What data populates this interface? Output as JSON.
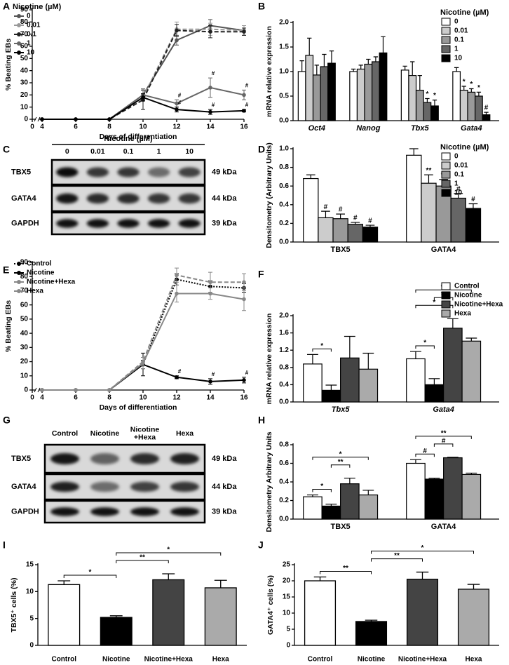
{
  "chart_data": [
    {
      "panel": "A",
      "type": "line",
      "ylabel": "% Beating EBs",
      "xlabel": "Days of differentiation",
      "legend_title": "Nicotine (µM)",
      "legend": "upper left",
      "axis_break": true,
      "x": [
        4,
        6,
        8,
        10,
        12,
        14,
        16
      ],
      "xlim": [
        0,
        16
      ],
      "xticks": [
        0,
        4,
        6,
        8,
        10,
        12,
        14,
        16
      ],
      "ylim": [
        0,
        90
      ],
      "yticks": [
        0,
        10,
        20,
        30,
        40,
        50,
        60,
        70,
        80,
        90
      ],
      "series": [
        {
          "name": "0",
          "color": "#555555",
          "style": "solid",
          "values": [
            0,
            0,
            0,
            20,
            65,
            77,
            73
          ],
          "errors": [
            0,
            0,
            0,
            4,
            4,
            5,
            4
          ]
        },
        {
          "name": "0.01",
          "color": "#999999",
          "style": "dashed",
          "values": [
            0,
            0,
            0,
            18,
            74,
            74,
            73
          ],
          "errors": [
            0,
            0,
            0,
            3,
            6,
            5,
            4
          ]
        },
        {
          "name": "0.1",
          "color": "#222222",
          "style": "dashed",
          "values": [
            0,
            0,
            0,
            16,
            73,
            72,
            72
          ],
          "errors": [
            0,
            0,
            0,
            8,
            5,
            5,
            3
          ]
        },
        {
          "name": "1",
          "color": "#666666",
          "style": "solid",
          "values": [
            0,
            0,
            0,
            20,
            13,
            26,
            20
          ],
          "errors": [
            0,
            0,
            0,
            5,
            3,
            8,
            4
          ],
          "significance": [
            null,
            null,
            null,
            null,
            "#",
            "#",
            "#"
          ]
        },
        {
          "name": "10",
          "color": "#000000",
          "style": "solid",
          "values": [
            0,
            0,
            0,
            18,
            8,
            6,
            7
          ],
          "errors": [
            0,
            0,
            0,
            3,
            2,
            2,
            1
          ],
          "significance": [
            null,
            null,
            null,
            null,
            "#",
            "#",
            "#"
          ]
        }
      ]
    },
    {
      "panel": "B",
      "type": "grouped_bar",
      "ylabel": "mRNA relative expression",
      "legend_title": "Nicotine (µM)",
      "legend": "upper right",
      "category_style": "italic",
      "categories": [
        "Oct4",
        "Nanog",
        "Tbx5",
        "Gata4"
      ],
      "ylim": [
        0,
        2
      ],
      "yticks": [
        {
          "value": 0,
          "label": "0.0"
        },
        {
          "value": 0.5,
          "label": "0.5"
        },
        {
          "value": 1,
          "label": "1.0"
        },
        {
          "value": 1.5,
          "label": "1.5"
        },
        {
          "value": 2,
          "label": "2.0"
        }
      ],
      "series": [
        {
          "name": "0",
          "color": "#ffffff",
          "values": [
            1.0,
            1.0,
            1.03,
            1.0
          ],
          "errors": [
            0.22,
            0.05,
            0.08,
            0.08
          ]
        },
        {
          "name": "0.01",
          "color": "#cccccc",
          "values": [
            1.33,
            1.05,
            0.92,
            0.62
          ],
          "errors": [
            0.35,
            0.08,
            0.28,
            0.08
          ],
          "significance": [
            null,
            null,
            null,
            "*"
          ]
        },
        {
          "name": "0.1",
          "color": "#999999",
          "values": [
            0.93,
            1.15,
            0.62,
            0.58
          ],
          "errors": [
            0.2,
            0.1,
            0.3,
            0.07
          ],
          "significance": [
            null,
            null,
            null,
            "*"
          ]
        },
        {
          "name": "1",
          "color": "#666666",
          "values": [
            1.1,
            1.2,
            0.37,
            0.5
          ],
          "errors": [
            0.25,
            0.1,
            0.08,
            0.08
          ],
          "significance": [
            null,
            null,
            "*",
            "*"
          ]
        },
        {
          "name": "10",
          "color": "#000000",
          "values": [
            1.17,
            1.38,
            0.3,
            0.12
          ],
          "errors": [
            0.25,
            0.33,
            0.12,
            0.05
          ],
          "significance": [
            null,
            null,
            "*",
            "#"
          ]
        }
      ]
    },
    {
      "panel": "D",
      "type": "grouped_bar",
      "ylabel": "Densitometry (Arbitrary Units)",
      "legend_title": "Nicotine (µM)",
      "legend": "upper right",
      "categories": [
        "TBX5",
        "GATA4"
      ],
      "ylim": [
        0,
        1
      ],
      "yticks": [
        {
          "value": 0,
          "label": "0.0"
        },
        {
          "value": 0.2,
          "label": "0.2"
        },
        {
          "value": 0.4,
          "label": "0.4"
        },
        {
          "value": 0.6,
          "label": "0.6"
        },
        {
          "value": 0.8,
          "label": "0.8"
        },
        {
          "value": 1,
          "label": "1.0"
        }
      ],
      "series": [
        {
          "name": "0",
          "color": "#ffffff",
          "values": [
            0.68,
            0.93
          ],
          "errors": [
            0.04,
            0.07
          ]
        },
        {
          "name": "0.01",
          "color": "#cccccc",
          "values": [
            0.26,
            0.63
          ],
          "errors": [
            0.07,
            0.09
          ],
          "significance": [
            "#",
            "**"
          ]
        },
        {
          "name": "0.1",
          "color": "#999999",
          "values": [
            0.25,
            0.6
          ],
          "errors": [
            0.05,
            0.07
          ],
          "significance": [
            "#",
            "**"
          ]
        },
        {
          "name": "1",
          "color": "#666666",
          "values": [
            0.19,
            0.47
          ],
          "errors": [
            0.02,
            0.05
          ],
          "significance": [
            "#",
            "#"
          ]
        },
        {
          "name": "10",
          "color": "#000000",
          "values": [
            0.16,
            0.36
          ],
          "errors": [
            0.02,
            0.05
          ],
          "significance": [
            "#",
            "#"
          ]
        }
      ]
    },
    {
      "panel": "E",
      "type": "line",
      "ylabel": "% Beating EBs",
      "xlabel": "Days of differentiation",
      "legend": "upper left",
      "axis_break": true,
      "x": [
        4,
        6,
        8,
        10,
        12,
        14,
        16
      ],
      "xlim": [
        0,
        16
      ],
      "xticks": [
        0,
        4,
        6,
        8,
        10,
        12,
        14,
        16
      ],
      "ylim": [
        0,
        90
      ],
      "yticks": [
        0,
        10,
        20,
        30,
        40,
        50,
        60,
        70,
        80,
        90
      ],
      "series": [
        {
          "name": "Control",
          "color": "#000000",
          "style": "dotted",
          "values": [
            0,
            0,
            0,
            18,
            78,
            73,
            72
          ],
          "errors": [
            0,
            0,
            0,
            8,
            4,
            4,
            3
          ]
        },
        {
          "name": "Nicotine",
          "color": "#000000",
          "style": "solid",
          "values": [
            0,
            0,
            0,
            18,
            9,
            6,
            7
          ],
          "errors": [
            0,
            0,
            0,
            3,
            1,
            2,
            2
          ],
          "significance": [
            null,
            null,
            null,
            null,
            "#",
            "#",
            "#"
          ]
        },
        {
          "name": "Nicotine+Hexa",
          "color": "#888888",
          "style": "dashed",
          "values": [
            0,
            0,
            0,
            20,
            81,
            76,
            76
          ],
          "errors": [
            0,
            0,
            0,
            3,
            5,
            7,
            6
          ]
        },
        {
          "name": "Hexa",
          "color": "#888888",
          "style": "solid",
          "values": [
            0,
            0,
            0,
            19,
            68,
            68,
            64
          ],
          "errors": [
            0,
            0,
            0,
            4,
            6,
            4,
            8
          ]
        }
      ]
    },
    {
      "panel": "F",
      "type": "grouped_bar",
      "ylabel": "mRNA relative expression",
      "legend": "upper right",
      "category_style": "italic",
      "categories": [
        "Tbx5",
        "Gata4"
      ],
      "ylim": [
        0,
        2
      ],
      "yticks": [
        {
          "value": 0,
          "label": "0.0"
        },
        {
          "value": 0.4,
          "label": "0.4"
        },
        {
          "value": 0.8,
          "label": "0.8"
        },
        {
          "value": 1.2,
          "label": "1.2"
        },
        {
          "value": 1.6,
          "label": "1.6"
        },
        {
          "value": 2,
          "label": "2.0"
        }
      ],
      "series": [
        {
          "name": "Control",
          "color": "#ffffff",
          "values": [
            0.88,
            1.0
          ],
          "errors": [
            0.22,
            0.17
          ]
        },
        {
          "name": "Nicotine",
          "color": "#000000",
          "values": [
            0.27,
            0.4
          ],
          "errors": [
            0.12,
            0.14
          ]
        },
        {
          "name": "Nicotine+Hexa",
          "color": "#444444",
          "values": [
            1.02,
            1.71
          ],
          "errors": [
            0.5,
            0.22
          ]
        },
        {
          "name": "Hexa",
          "color": "#aaaaaa",
          "values": [
            0.76,
            1.41
          ],
          "errors": [
            0.37,
            0.07
          ]
        }
      ],
      "comparisons": [
        {
          "category": "Tbx5",
          "pair": [
            "Control",
            "Nicotine"
          ],
          "label": "*"
        },
        {
          "category": "Gata4",
          "pair": [
            "Control",
            "Nicotine"
          ],
          "label": "*"
        },
        {
          "category": "Gata4",
          "pair": [
            "Control",
            "Nicotine+Hexa"
          ],
          "label": "*"
        },
        {
          "category": "Gata4",
          "pair": [
            "Nicotine",
            "Nicotine+Hexa"
          ],
          "label": "**"
        },
        {
          "category": "Gata4",
          "pair": [
            "Control",
            "Hexa"
          ],
          "label": "**"
        }
      ]
    },
    {
      "panel": "H",
      "type": "grouped_bar",
      "ylabel": "Densitometry Arbitrary Units",
      "categories": [
        "TBX5",
        "GATA4"
      ],
      "ylim": [
        0,
        0.8
      ],
      "yticks": [
        {
          "value": 0,
          "label": "0.0"
        },
        {
          "value": 0.2,
          "label": "0.2"
        },
        {
          "value": 0.4,
          "label": "0.4"
        },
        {
          "value": 0.6,
          "label": "0.6"
        },
        {
          "value": 0.8,
          "label": "0.8"
        }
      ],
      "series": [
        {
          "name": "Control",
          "color": "#ffffff",
          "values": [
            0.24,
            0.6
          ],
          "errors": [
            0.02,
            0.04
          ]
        },
        {
          "name": "Nicotine",
          "color": "#000000",
          "values": [
            0.14,
            0.43
          ],
          "errors": [
            0.02,
            0.01
          ]
        },
        {
          "name": "Nicotine+Hexa",
          "color": "#444444",
          "values": [
            0.38,
            0.66
          ],
          "errors": [
            0.06,
            0.005
          ]
        },
        {
          "name": "Hexa",
          "color": "#aaaaaa",
          "values": [
            0.26,
            0.48
          ],
          "errors": [
            0.05,
            0.015
          ]
        }
      ],
      "comparisons": [
        {
          "category": "TBX5",
          "pair": [
            "Control",
            "Nicotine"
          ],
          "label": "*"
        },
        {
          "category": "TBX5",
          "pair": [
            "Nicotine",
            "Nicotine+Hexa"
          ],
          "label": "**"
        },
        {
          "category": "TBX5",
          "pair": [
            "Control",
            "Hexa"
          ],
          "label": "*"
        },
        {
          "category": "GATA4",
          "pair": [
            "Control",
            "Nicotine"
          ],
          "label": "#"
        },
        {
          "category": "GATA4",
          "pair": [
            "Nicotine",
            "Nicotine+Hexa"
          ],
          "label": "#"
        },
        {
          "category": "GATA4",
          "pair": [
            "Control",
            "Hexa"
          ],
          "label": "**"
        }
      ]
    },
    {
      "panel": "I",
      "type": "bar",
      "ylabel": "TBX5⁺ cells (%)",
      "categories": [
        "Control",
        "Nicotine",
        "Nicotine+Hexa",
        "Hexa"
      ],
      "values": [
        11.3,
        5.2,
        12.2,
        10.7
      ],
      "errors": [
        0.7,
        0.3,
        1.1,
        1.4
      ],
      "colors": [
        "#ffffff",
        "#000000",
        "#444444",
        "#aaaaaa"
      ],
      "ylim": [
        0,
        15
      ],
      "yticks": [
        0,
        5,
        10,
        15
      ],
      "comparisons": [
        {
          "pair": [
            "Control",
            "Nicotine"
          ],
          "label": "*"
        },
        {
          "pair": [
            "Nicotine",
            "Nicotine+Hexa"
          ],
          "label": "**"
        },
        {
          "pair": [
            "Nicotine",
            "Hexa"
          ],
          "label": "*"
        }
      ]
    },
    {
      "panel": "J",
      "type": "bar",
      "ylabel": "GATA4⁺ cells (%)",
      "categories": [
        "Control",
        "Nicotine",
        "Nicotine+Hexa",
        "Hexa"
      ],
      "values": [
        20,
        7.4,
        20.5,
        17.4
      ],
      "errors": [
        1.2,
        0.4,
        2.2,
        1.5
      ],
      "colors": [
        "#ffffff",
        "#000000",
        "#444444",
        "#aaaaaa"
      ],
      "ylim": [
        0,
        25
      ],
      "yticks": [
        0,
        5,
        10,
        15,
        20,
        25
      ],
      "comparisons": [
        {
          "pair": [
            "Control",
            "Nicotine"
          ],
          "label": "**"
        },
        {
          "pair": [
            "Nicotine",
            "Nicotine+Hexa"
          ],
          "label": "**"
        },
        {
          "pair": [
            "Nicotine",
            "Hexa"
          ],
          "label": "*"
        }
      ]
    }
  ],
  "blots": [
    {
      "panel": "C",
      "title": "Nicotine (µM)",
      "lanes": [
        [
          "0"
        ],
        [
          "0.01"
        ],
        [
          "0.1"
        ],
        [
          "1"
        ],
        [
          "10"
        ]
      ],
      "rows": [
        {
          "name": "TBX5",
          "size": "49 kDa"
        },
        {
          "name": "GATA4",
          "size": "44 kDa"
        },
        {
          "name": "GAPDH",
          "size": "39 kDa"
        }
      ]
    },
    {
      "panel": "G",
      "lanes": [
        [
          "Control"
        ],
        [
          "Nicotine"
        ],
        [
          "Nicotine",
          "+Hexa"
        ],
        [
          "Hexa"
        ]
      ],
      "rows": [
        {
          "name": "TBX5",
          "size": "49 kDa"
        },
        {
          "name": "GATA4",
          "size": "44 kDa"
        },
        {
          "name": "GAPDH",
          "size": "39 kDa"
        }
      ]
    }
  ]
}
